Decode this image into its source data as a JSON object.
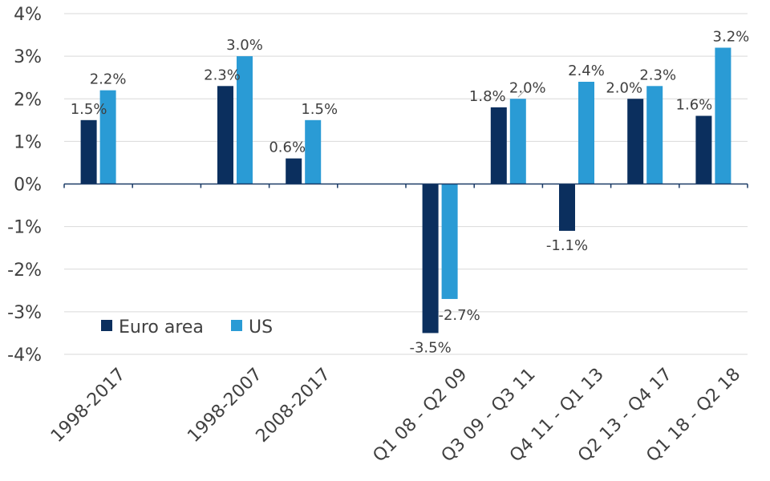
{
  "chart_data": {
    "type": "bar",
    "title": "",
    "xlabel": "",
    "ylabel": "",
    "ylim": [
      -4,
      4
    ],
    "y_ticks": [
      -4,
      -3,
      -2,
      -1,
      0,
      1,
      2,
      3,
      4
    ],
    "y_tick_labels": [
      "-4%",
      "-3%",
      "-2%",
      "-1%",
      "0%",
      "1%",
      "2%",
      "3%",
      "4%"
    ],
    "grid": true,
    "legend_position": "bottom-left",
    "categories": [
      "1998-2017",
      "",
      "1998-2007",
      "2008-2017",
      "",
      "Q1 08 - Q2 09",
      "Q3 09 - Q3 11",
      "Q4 11 - Q1 13",
      "Q2 13 - Q4 17",
      "Q1 18 - Q2 18"
    ],
    "series": [
      {
        "name": "Euro area",
        "color": "#0b2f5e",
        "values": [
          1.5,
          null,
          2.3,
          0.6,
          null,
          -3.5,
          1.8,
          -1.1,
          2.0,
          1.6
        ],
        "labels": [
          "1.5%",
          null,
          "2.3%",
          "0.6%",
          null,
          "-3.5%",
          "1.8%",
          "-1.1%",
          "2.0%",
          "1.6%"
        ]
      },
      {
        "name": "US",
        "color": "#2a9bd5",
        "values": [
          2.2,
          null,
          3.0,
          1.5,
          null,
          -2.7,
          2.0,
          2.4,
          2.3,
          3.2
        ],
        "labels": [
          "2.2%",
          null,
          "3.0%",
          "1.5%",
          null,
          "-2.7%",
          "2.0%",
          "2.4%",
          "2.3%",
          "3.2%"
        ]
      }
    ]
  }
}
